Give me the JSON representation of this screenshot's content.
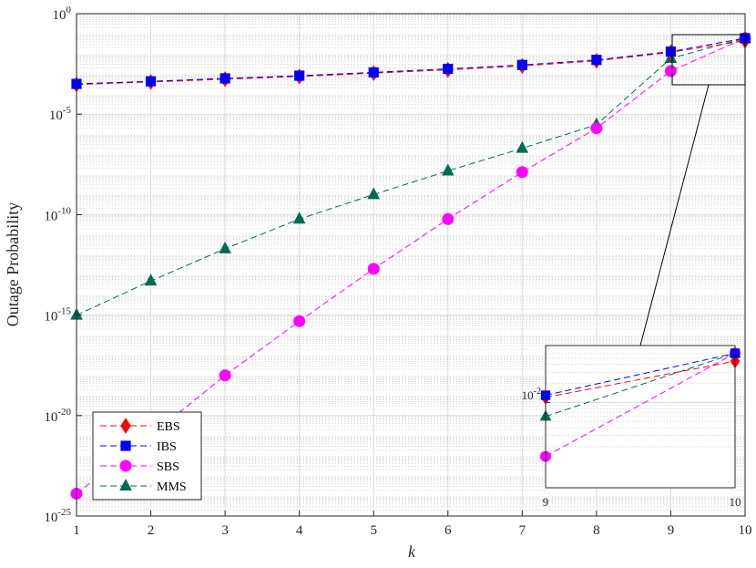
{
  "chart_data": {
    "type": "line",
    "xlabel": "k",
    "ylabel": "Outage Probability",
    "y_scale": "log",
    "xlim": [
      1,
      10
    ],
    "ylim_exponent": [
      -25,
      0
    ],
    "x": [
      1,
      2,
      3,
      4,
      5,
      6,
      7,
      8,
      9,
      10
    ],
    "x_ticks": [
      "1",
      "2",
      "3",
      "4",
      "5",
      "6",
      "7",
      "8",
      "9",
      "10"
    ],
    "y_ticks": [
      {
        "base": "10",
        "exp": "-25"
      },
      {
        "base": "10",
        "exp": "-20"
      },
      {
        "base": "10",
        "exp": "-15"
      },
      {
        "base": "10",
        "exp": "-10"
      },
      {
        "base": "10",
        "exp": "-5"
      },
      {
        "base": "10",
        "exp": "0"
      }
    ],
    "grid": true,
    "legend_position": "bottom-left",
    "series": [
      {
        "name": "EBS",
        "color": "#ff0000",
        "marker": "diamond",
        "values": [
          0.0003,
          0.0004,
          0.00055,
          0.00075,
          0.0011,
          0.0016,
          0.0025,
          0.0045,
          0.012,
          0.045
        ]
      },
      {
        "name": "IBS",
        "color": "#0000ff",
        "marker": "square",
        "values": [
          0.00032,
          0.00043,
          0.0006,
          0.00082,
          0.0012,
          0.0018,
          0.0028,
          0.005,
          0.013,
          0.06
        ]
      },
      {
        "name": "SBS",
        "color": "#ff00ff",
        "marker": "circle",
        "values": [
          1.3e-24,
          1e-21,
          1e-18,
          5e-16,
          2e-13,
          6e-11,
          1.3e-08,
          2e-06,
          0.0014,
          0.06
        ]
      },
      {
        "name": "MMS",
        "color": "#006b54",
        "marker": "triangle",
        "values": [
          1e-15,
          5e-14,
          2e-12,
          6e-11,
          1e-09,
          1.5e-08,
          2e-07,
          3e-06,
          0.006,
          0.06
        ]
      }
    ],
    "inset": {
      "x_ticks": [
        "9",
        "10"
      ],
      "y_tick": {
        "base": "10",
        "exp": "-2"
      }
    }
  }
}
